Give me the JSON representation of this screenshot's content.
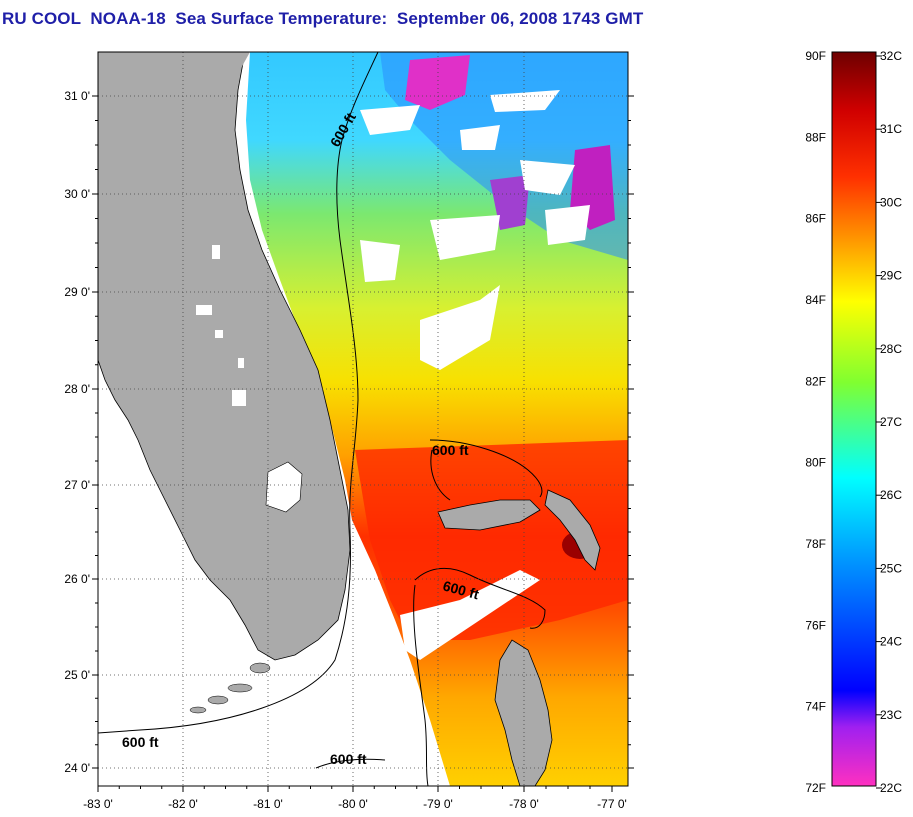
{
  "title": "RU COOL  NOAA-18  Sea Surface Temperature:  September 06, 2008 1743 GMT",
  "map": {
    "lon_ticks": [
      "-83 0'",
      "-82 0'",
      "-81 0'",
      "-80 0'",
      "-79 0'",
      "-78 0'",
      "-77 0'"
    ],
    "lat_ticks": [
      "31 0'",
      "30 0'",
      "29 0'",
      "28 0'",
      "27 0'",
      "26 0'",
      "25 0'",
      "24 0'"
    ],
    "isobath_labels": [
      "600 ft",
      "600 ft",
      "600 ft",
      "600 ft",
      "600 ft"
    ],
    "land_color": "#aaaaaa",
    "cloud_color": "#ffffff"
  },
  "colorbar": {
    "fahrenheit": [
      "90F",
      "88F",
      "86F",
      "84F",
      "82F",
      "80F",
      "78F",
      "76F",
      "74F",
      "72F"
    ],
    "celsius": [
      "32C",
      "31C",
      "30C",
      "29C",
      "28C",
      "27C",
      "26C",
      "25C",
      "24C",
      "23C",
      "22C"
    ],
    "colors": [
      "#6e0000",
      "#d00000",
      "#ff3000",
      "#ff9000",
      "#ffff00",
      "#80ff30",
      "#00ffff",
      "#0090ff",
      "#0000ff",
      "#a020f0",
      "#ff30c0"
    ]
  }
}
